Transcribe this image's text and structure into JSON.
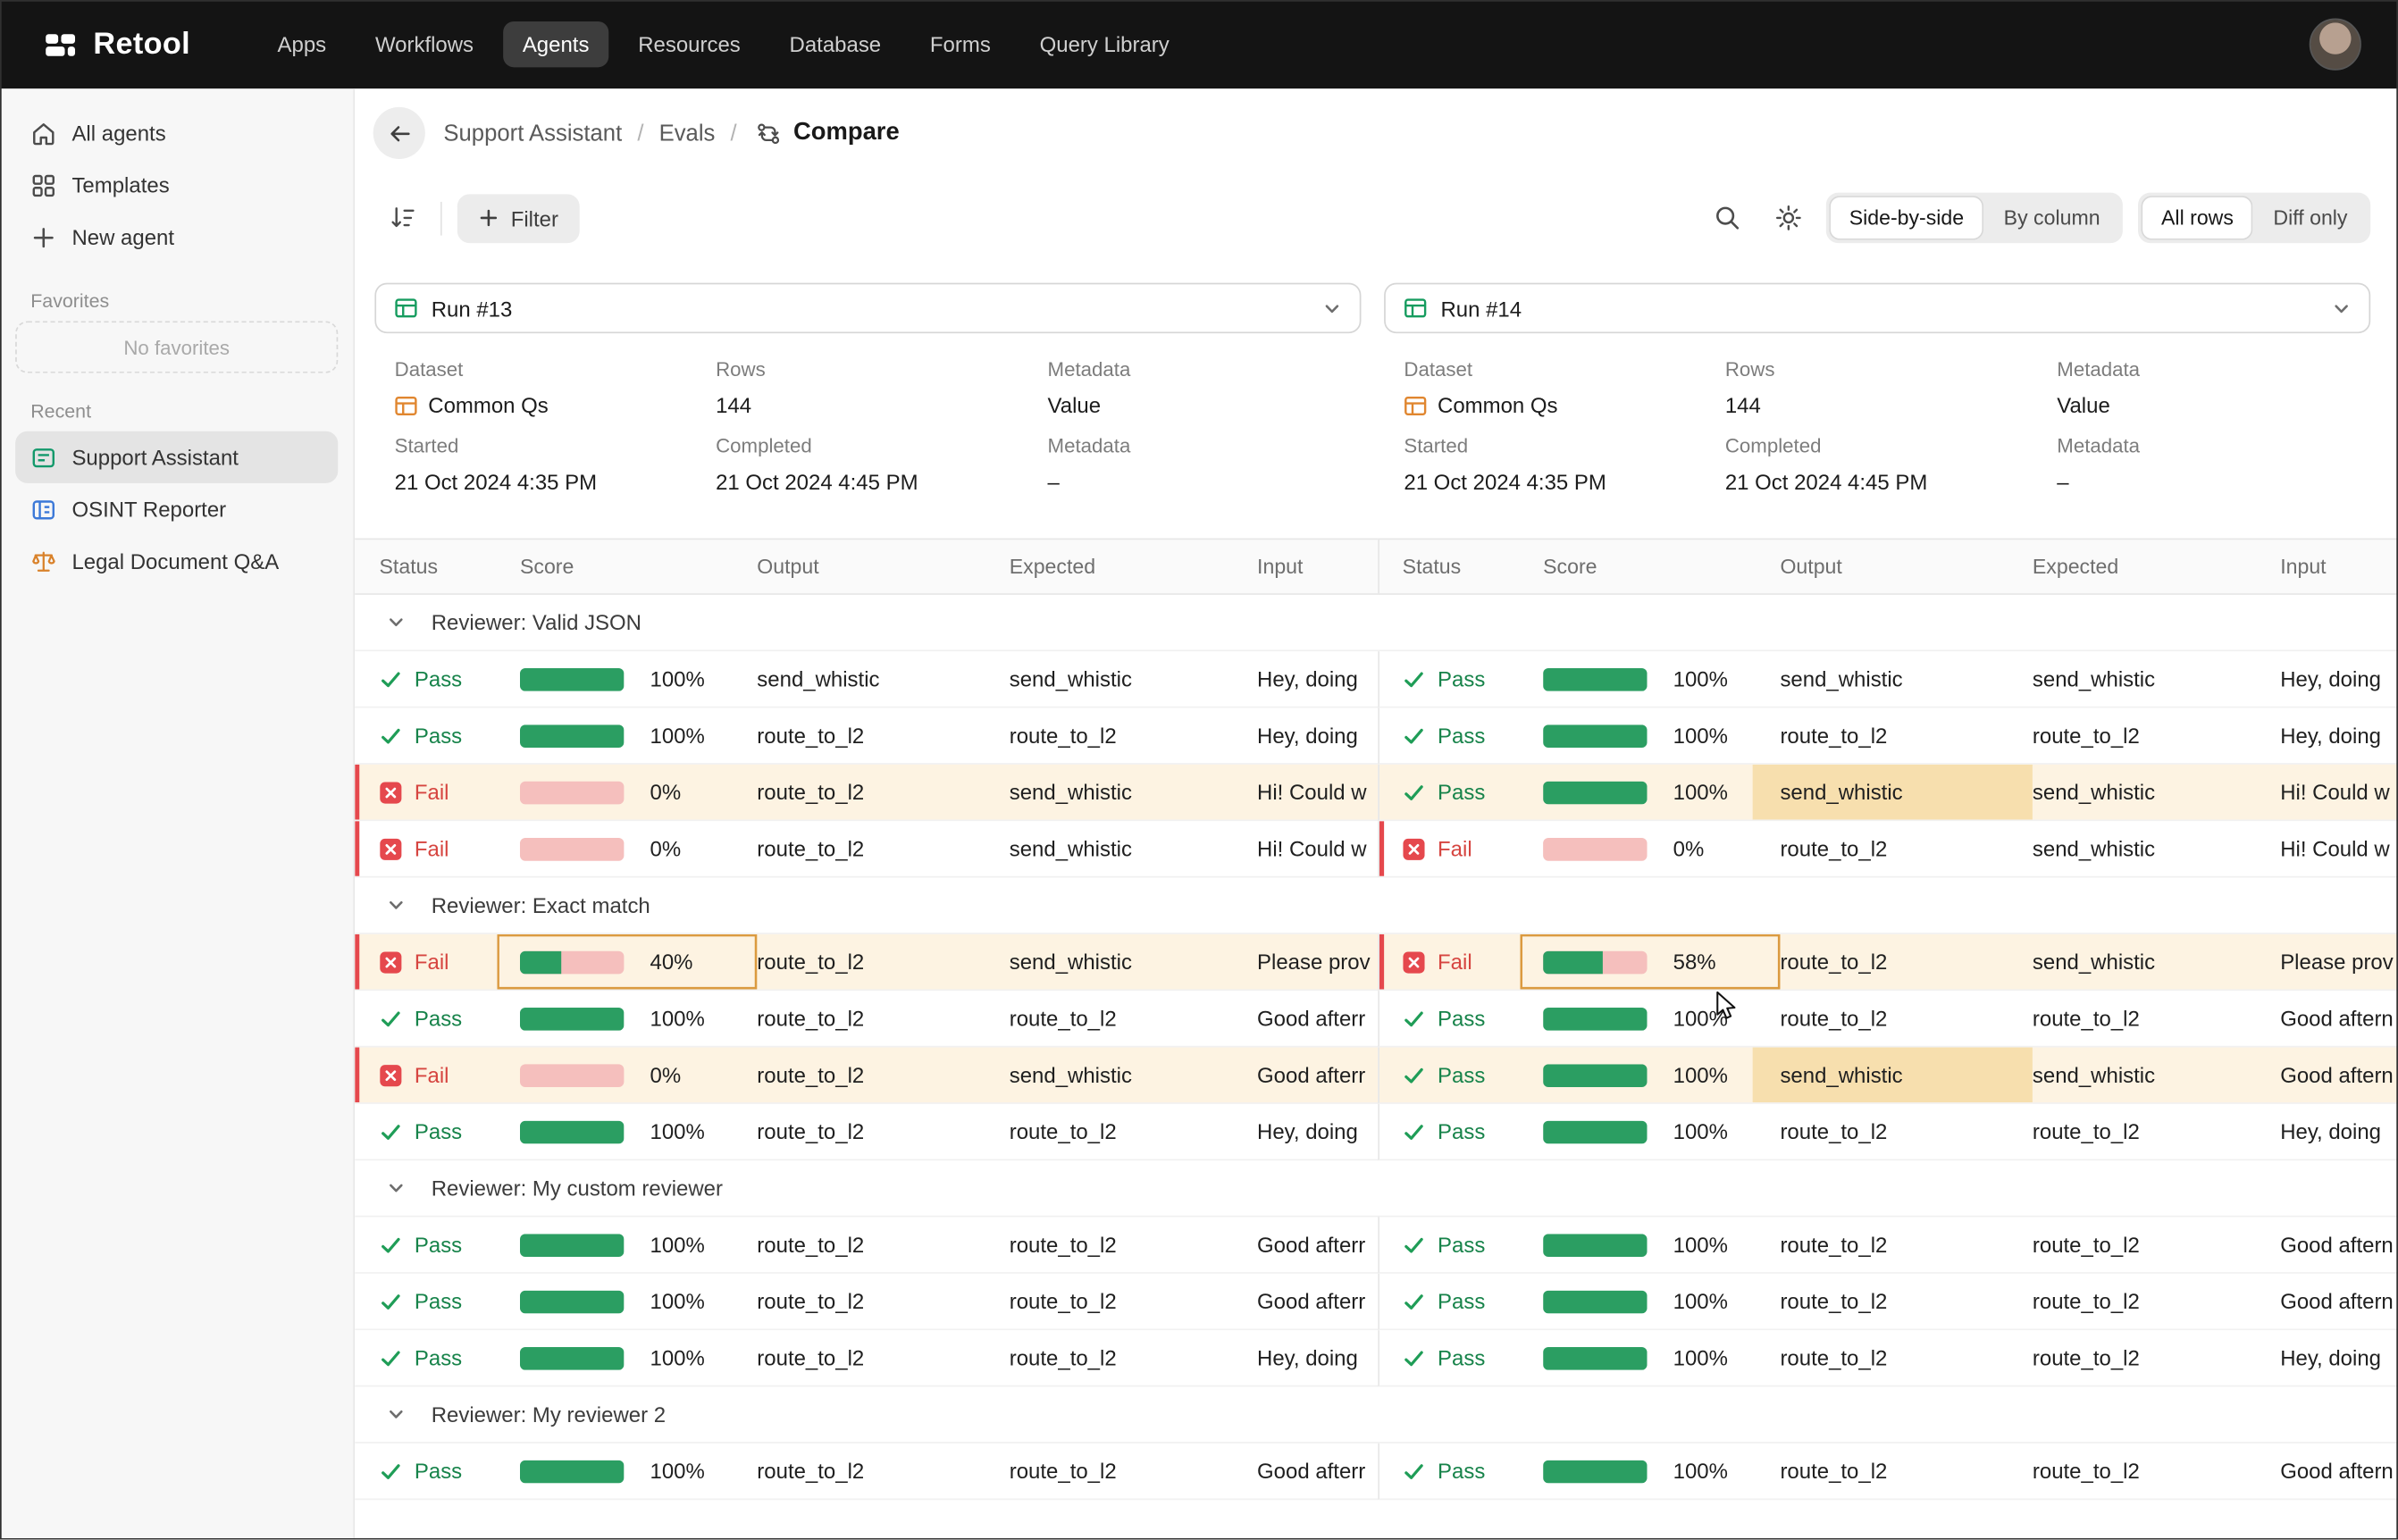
{
  "topnav": {
    "brand": "Retool",
    "items": [
      {
        "label": "Apps",
        "active": false
      },
      {
        "label": "Workflows",
        "active": false
      },
      {
        "label": "Agents",
        "active": true
      },
      {
        "label": "Resources",
        "active": false
      },
      {
        "label": "Database",
        "active": false
      },
      {
        "label": "Forms",
        "active": false
      },
      {
        "label": "Query Library",
        "active": false
      }
    ]
  },
  "sidebar": {
    "items": [
      {
        "label": "All agents",
        "icon": "home-icon"
      },
      {
        "label": "Templates",
        "icon": "grid-icon"
      },
      {
        "label": "New agent",
        "icon": "plus-icon"
      }
    ],
    "favorites_label": "Favorites",
    "no_favorites": "No favorites",
    "recent_label": "Recent",
    "recent": [
      {
        "label": "Support Assistant",
        "icon": "agent-green-icon",
        "active": true
      },
      {
        "label": "OSINT Reporter",
        "icon": "report-blue-icon",
        "active": false
      },
      {
        "label": "Legal Document Q&A",
        "icon": "scales-orange-icon",
        "active": false
      }
    ]
  },
  "breadcrumb": {
    "items": [
      "Support Assistant",
      "Evals"
    ],
    "current": "Compare"
  },
  "toolbar": {
    "filter_label": "Filter",
    "view_toggle": [
      {
        "label": "Side-by-side",
        "active": true
      },
      {
        "label": "By column",
        "active": false
      }
    ],
    "rows_toggle": [
      {
        "label": "All rows",
        "active": true
      },
      {
        "label": "Diff only",
        "active": false
      }
    ]
  },
  "runs": [
    {
      "name": "Run #13",
      "meta": [
        [
          {
            "label": "Dataset",
            "value": "Common Qs",
            "icon": "table-orange-icon"
          },
          {
            "label": "Rows",
            "value": "144"
          },
          {
            "label": "Metadata",
            "value": "Value"
          }
        ],
        [
          {
            "label": "Started",
            "value": "21 Oct 2024 4:35 PM"
          },
          {
            "label": "Completed",
            "value": "21 Oct 2024 4:45 PM"
          },
          {
            "label": "Metadata",
            "value": "–"
          }
        ]
      ]
    },
    {
      "name": "Run #14",
      "meta": [
        [
          {
            "label": "Dataset",
            "value": "Common Qs",
            "icon": "table-orange-icon"
          },
          {
            "label": "Rows",
            "value": "144"
          },
          {
            "label": "Metadata",
            "value": "Value"
          }
        ],
        [
          {
            "label": "Started",
            "value": "21 Oct 2024 4:35 PM"
          },
          {
            "label": "Completed",
            "value": "21 Oct 2024 4:45 PM"
          },
          {
            "label": "Metadata",
            "value": "–"
          }
        ]
      ]
    }
  ],
  "table": {
    "columns": [
      "Status",
      "Score",
      "Output",
      "Expected",
      "Input"
    ],
    "groups": [
      {
        "label": "Reviewer: Valid JSON",
        "rows": [
          {
            "left": {
              "status": "Pass",
              "score": 100,
              "output": "send_whistic",
              "expected": "send_whistic",
              "input": "Hey, doing"
            },
            "right": {
              "status": "Pass",
              "score": 100,
              "output": "send_whistic",
              "expected": "send_whistic",
              "input": "Hey, doing"
            }
          },
          {
            "left": {
              "status": "Pass",
              "score": 100,
              "output": "route_to_l2",
              "expected": "route_to_l2",
              "input": "Hey, doing"
            },
            "right": {
              "status": "Pass",
              "score": 100,
              "output": "route_to_l2",
              "expected": "route_to_l2",
              "input": "Hey, doing"
            }
          },
          {
            "left": {
              "status": "Fail",
              "score": 0,
              "output": "route_to_l2",
              "expected": "send_whistic",
              "input": "Hi! Could w",
              "diff": true
            },
            "right": {
              "status": "Pass",
              "score": 100,
              "output": "send_whistic",
              "expected": "send_whistic",
              "input": "Hi! Could w",
              "diff": true,
              "output_hl": true
            }
          },
          {
            "left": {
              "status": "Fail",
              "score": 0,
              "output": "route_to_l2",
              "expected": "send_whistic",
              "input": "Hi! Could w"
            },
            "right": {
              "status": "Fail",
              "score": 0,
              "output": "route_to_l2",
              "expected": "send_whistic",
              "input": "Hi! Could w"
            }
          }
        ]
      },
      {
        "label": "Reviewer: Exact match",
        "rows": [
          {
            "left": {
              "status": "Fail",
              "score": 40,
              "output": "route_to_l2",
              "expected": "send_whistic",
              "input": "Please prov",
              "diff": true,
              "score_hl": true
            },
            "right": {
              "status": "Fail",
              "score": 58,
              "output": "route_to_l2",
              "expected": "send_whistic",
              "input": "Please prov",
              "diff": true,
              "score_hl": true
            }
          },
          {
            "left": {
              "status": "Pass",
              "score": 100,
              "output": "route_to_l2",
              "expected": "route_to_l2",
              "input": "Good afterr"
            },
            "right": {
              "status": "Pass",
              "score": 100,
              "output": "route_to_l2",
              "expected": "route_to_l2",
              "input": "Good aftern"
            }
          },
          {
            "left": {
              "status": "Fail",
              "score": 0,
              "output": "route_to_l2",
              "expected": "send_whistic",
              "input": "Good afterr",
              "diff": true
            },
            "right": {
              "status": "Pass",
              "score": 100,
              "output": "send_whistic",
              "expected": "send_whistic",
              "input": "Good aftern",
              "diff": true,
              "output_hl": true
            }
          },
          {
            "left": {
              "status": "Pass",
              "score": 100,
              "output": "route_to_l2",
              "expected": "route_to_l2",
              "input": "Hey, doing"
            },
            "right": {
              "status": "Pass",
              "score": 100,
              "output": "route_to_l2",
              "expected": "route_to_l2",
              "input": "Hey, doing"
            }
          }
        ]
      },
      {
        "label": "Reviewer: My custom reviewer",
        "rows": [
          {
            "left": {
              "status": "Pass",
              "score": 100,
              "output": "route_to_l2",
              "expected": "route_to_l2",
              "input": "Good afterr"
            },
            "right": {
              "status": "Pass",
              "score": 100,
              "output": "route_to_l2",
              "expected": "route_to_l2",
              "input": "Good aftern"
            }
          },
          {
            "left": {
              "status": "Pass",
              "score": 100,
              "output": "route_to_l2",
              "expected": "route_to_l2",
              "input": "Good afterr"
            },
            "right": {
              "status": "Pass",
              "score": 100,
              "output": "route_to_l2",
              "expected": "route_to_l2",
              "input": "Good aftern"
            }
          },
          {
            "left": {
              "status": "Pass",
              "score": 100,
              "output": "route_to_l2",
              "expected": "route_to_l2",
              "input": "Hey, doing"
            },
            "right": {
              "status": "Pass",
              "score": 100,
              "output": "route_to_l2",
              "expected": "route_to_l2",
              "input": "Hey, doing"
            }
          }
        ]
      },
      {
        "label": "Reviewer: My reviewer 2",
        "rows": [
          {
            "left": {
              "status": "Pass",
              "score": 100,
              "output": "route_to_l2",
              "expected": "route_to_l2",
              "input": "Good afterr"
            },
            "right": {
              "status": "Pass",
              "score": 100,
              "output": "route_to_l2",
              "expected": "route_to_l2",
              "input": "Good aftern"
            }
          }
        ]
      }
    ]
  },
  "colors": {
    "pass_green": "#17834a",
    "bar_green": "#2b9e62",
    "bar_pink": "#f5bfbd",
    "fail_red": "#d64540",
    "fail_stripe": "#e5484d",
    "diff_row_bg": "#fdf3e2",
    "diff_cell_bg": "#f7dfae",
    "diff_cell_border": "#db9a3f"
  }
}
